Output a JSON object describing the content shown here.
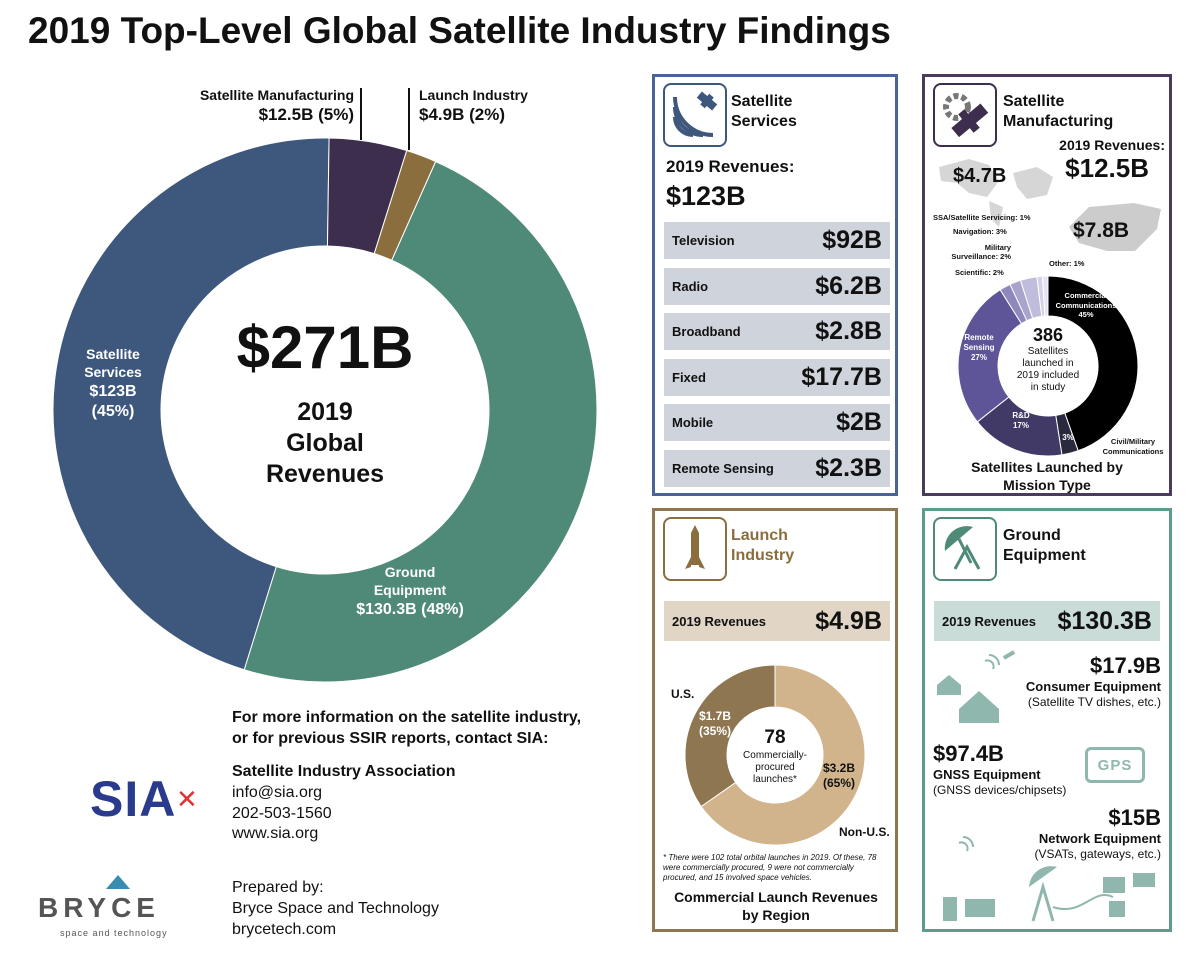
{
  "title": "2019 Top-Level Global Satellite Industry Findings",
  "colors": {
    "services": "#3e587d",
    "ground": "#4f8a79",
    "manufacturing": "#3d2e4e",
    "launch": "#8b6e3e",
    "launch_panel": "#8d7650",
    "services_panel": "#4a6595",
    "manufacturing_panel": "#4a3a5e",
    "ground_panel": "#5f9a8e"
  },
  "chart_data": [
    {
      "type": "pie",
      "title": "$271B",
      "center_subtitle": [
        "2019",
        "Global",
        "Revenues"
      ],
      "categories": [
        "Ground Equipment",
        "Satellite Services",
        "Satellite Manufacturing",
        "Launch Industry"
      ],
      "values": [
        130.3,
        123,
        12.5,
        4.9
      ],
      "percentages": [
        48,
        45,
        5,
        2
      ],
      "labels": [
        {
          "name": "Ground",
          "name2": "Equipment",
          "value": "$130.3B (48%)"
        },
        {
          "name": "Satellite",
          "name2": "Services",
          "value": "$123B",
          "pct": "(45%)"
        },
        {
          "name": "Satellite Manufacturing",
          "value": "$12.5B (5%)"
        },
        {
          "name": "Launch Industry",
          "value": "$4.9B (2%)"
        }
      ]
    },
    {
      "type": "pie",
      "title": "Satellites Launched by Mission Type",
      "center": {
        "value": "386",
        "text": [
          "Satellites",
          "launched in",
          "2019 included",
          "in study"
        ]
      },
      "categories": [
        "Commercial Communications",
        "Civil/Military Communications",
        "R&D",
        "Remote Sensing",
        "Scientific",
        "Military Surveillance",
        "Navigation",
        "SSA/Satellite Servicing",
        "Other"
      ],
      "values": [
        45,
        3,
        17,
        27,
        2,
        2,
        3,
        1,
        1
      ],
      "labels": {
        "commercial": [
          "Commercial",
          "Communications",
          "45%"
        ],
        "civil": [
          "Civil/Military",
          "Communications"
        ],
        "civil_pct": "3%",
        "rd": [
          "R&D",
          "17%"
        ],
        "remote": [
          "Remote",
          "Sensing",
          "27%"
        ],
        "scientific": "Scientific: 2%",
        "military": [
          "Military",
          "Surveillance: 2%"
        ],
        "navigation": "Navigation: 3%",
        "ssa": "SSA/Satellite Servicing: 1%",
        "other": "Other: 1%"
      }
    },
    {
      "type": "pie",
      "title": "Commercial Launch Revenues by Region",
      "center": {
        "value": "78",
        "text": [
          "Commercially-",
          "procured",
          "launches*"
        ]
      },
      "categories": [
        "Non-U.S.",
        "U.S."
      ],
      "values": [
        3.2,
        1.7
      ],
      "percentages": [
        65,
        35
      ],
      "labels": {
        "us_value": "$1.7B",
        "us_pct": "(35%)",
        "nonus_value": "$3.2B",
        "nonus_pct": "(65%)"
      }
    }
  ],
  "services": {
    "title1": "Satellite",
    "title2": "Services",
    "rev_label": "2019 Revenues:",
    "rev_value": "$123B",
    "rows": [
      {
        "label": "Television",
        "value": "$92B"
      },
      {
        "label": "Radio",
        "value": "$6.2B"
      },
      {
        "label": "Broadband",
        "value": "$2.8B"
      },
      {
        "label": "Fixed",
        "value": "$17.7B"
      },
      {
        "label": "Mobile",
        "value": "$2B"
      },
      {
        "label": "Remote Sensing",
        "value": "$2.3B"
      }
    ]
  },
  "manufacturing": {
    "title1": "Satellite",
    "title2": "Manufacturing",
    "rev_label": "2019 Revenues:",
    "rev_value": "$12.5B",
    "us_value": "$7.8B",
    "world_value": "$4.7B"
  },
  "launch": {
    "title1": "Launch",
    "title2": "Industry",
    "rev_label": "2019 Revenues",
    "rev_value": "$4.9B",
    "us_label": "U.S.",
    "nonus_label": "Non-U.S.",
    "footnote": "* There were 102 total orbital launches in 2019. Of these, 78 were commercially procured, 9 were not commercially procured, and 15 involved space vehicles."
  },
  "ground": {
    "title1": "Ground",
    "title2": "Equipment",
    "rev_label": "2019 Revenues",
    "rev_value": "$130.3B",
    "consumer_value": "$17.9B",
    "consumer_label": "Consumer Equipment",
    "consumer_desc": "(Satellite TV dishes, etc.)",
    "gnss_value": "$97.4B",
    "gnss_label": "GNSS Equipment",
    "gnss_desc": "(GNSS devices/chipsets)",
    "gps_text": "GPS",
    "network_value": "$15B",
    "network_label": "Network Equipment",
    "network_desc": "(VSATs, gateways, etc.)"
  },
  "footer": {
    "info1": "For more information on the satellite industry,",
    "info2": "or for previous SSIR reports, contact SIA:",
    "org": "Satellite Industry Association",
    "email": "info@sia.org",
    "phone": "202-503-1560",
    "web": "www.sia.org",
    "sia_logo": "SIA",
    "bryce_logo": "BRYCE",
    "bryce_tag": "space and technology",
    "prepared": "Prepared by:",
    "company": "Bryce Space and Technology",
    "company_web": "brycetech.com"
  }
}
